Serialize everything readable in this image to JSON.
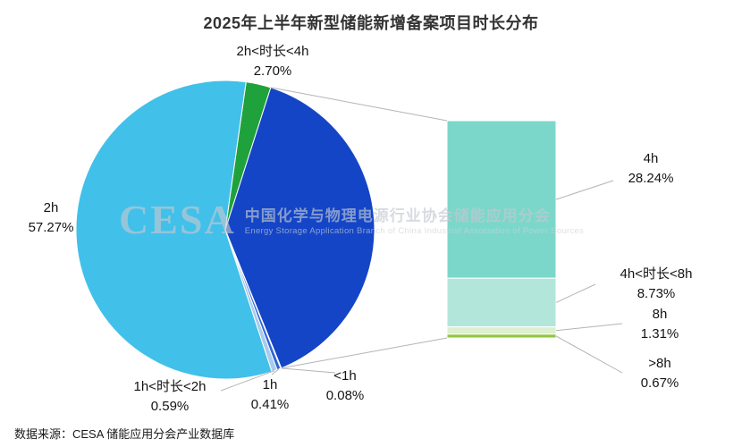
{
  "title": "2025年上半年新型储能新增备案项目时长分布",
  "footer": {
    "source": "数据来源：CESA 储能应用分会产业数据库"
  },
  "watermark": {
    "logo": "CESA",
    "org_cn": "中国化学与物理电源行业协会储能应用分会",
    "org_en": "Energy Storage Application Branch of China Industrial Association of Power Sources"
  },
  "chart_data": {
    "type": "pie",
    "variant": "bar-of-pie",
    "title": "2025年上半年新型储能新增备案项目时长分布",
    "unit": "percent",
    "legend": "none",
    "grid": false,
    "pie_slices": [
      {
        "label": "2h<时长<4h",
        "value": 2.7,
        "pct_text": "2.70%",
        "color": "#1FA23C"
      },
      {
        "label": "",
        "value": 38.95,
        "pct_text": "",
        "color": "#1445C7",
        "expanded_to_bar": true
      },
      {
        "label": "<1h",
        "value": 0.08,
        "pct_text": "0.08%",
        "color": "#16307F"
      },
      {
        "label": "1h",
        "value": 0.41,
        "pct_text": "0.41%",
        "color": "#2F66D8"
      },
      {
        "label": "1h<时长<2h",
        "value": 0.59,
        "pct_text": "0.59%",
        "color": "#A9CBEC"
      },
      {
        "label": "2h",
        "value": 57.27,
        "pct_text": "57.27%",
        "color": "#41C0EA"
      }
    ],
    "bar_segments": [
      {
        "label": "4h",
        "value": 28.24,
        "pct_text": "28.24%",
        "color": "#7CD7CB"
      },
      {
        "label": "4h<时长<8h",
        "value": 8.73,
        "pct_text": "8.73%",
        "color": "#B2E6DB"
      },
      {
        "label": "8h",
        "value": 1.31,
        "pct_text": "1.31%",
        "color": "#DCEFCF"
      },
      {
        "label": ">8h",
        "value": 0.67,
        "pct_text": "0.67%",
        "color": "#8FC63F"
      }
    ]
  }
}
